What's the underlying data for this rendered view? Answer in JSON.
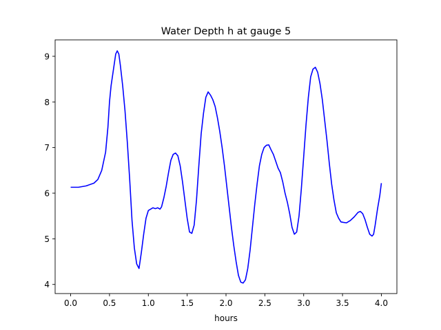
{
  "chart_data": {
    "type": "line",
    "title": "Water Depth h at gauge 5",
    "xlabel": "hours",
    "ylabel": "",
    "xlim": [
      -0.2,
      4.2
    ],
    "ylim": [
      3.8,
      9.36
    ],
    "xticks": [
      "0.0",
      "0.5",
      "1.0",
      "1.5",
      "2.0",
      "2.5",
      "3.0",
      "3.5",
      "4.0"
    ],
    "yticks": [
      "4",
      "5",
      "6",
      "7",
      "8",
      "9"
    ],
    "grid": false,
    "legend": "none",
    "series": [
      {
        "color": "#0000ff",
        "x": [
          0.0,
          0.1,
          0.2,
          0.3,
          0.35,
          0.4,
          0.45,
          0.48,
          0.5,
          0.52,
          0.55,
          0.58,
          0.6,
          0.62,
          0.64,
          0.67,
          0.7,
          0.73,
          0.76,
          0.79,
          0.82,
          0.85,
          0.88,
          0.91,
          0.94,
          0.97,
          1.0,
          1.03,
          1.06,
          1.09,
          1.12,
          1.15,
          1.17,
          1.2,
          1.23,
          1.26,
          1.29,
          1.32,
          1.35,
          1.38,
          1.41,
          1.44,
          1.47,
          1.5,
          1.53,
          1.56,
          1.59,
          1.62,
          1.65,
          1.68,
          1.71,
          1.74,
          1.77,
          1.8,
          1.83,
          1.86,
          1.89,
          1.92,
          1.95,
          1.98,
          2.01,
          2.04,
          2.07,
          2.1,
          2.13,
          2.16,
          2.19,
          2.22,
          2.25,
          2.28,
          2.31,
          2.34,
          2.37,
          2.4,
          2.43,
          2.46,
          2.49,
          2.52,
          2.55,
          2.58,
          2.61,
          2.64,
          2.67,
          2.7,
          2.73,
          2.76,
          2.79,
          2.82,
          2.85,
          2.88,
          2.91,
          2.94,
          2.97,
          3.0,
          3.03,
          3.06,
          3.09,
          3.12,
          3.15,
          3.18,
          3.21,
          3.24,
          3.27,
          3.3,
          3.33,
          3.36,
          3.39,
          3.42,
          3.45,
          3.48,
          3.51,
          3.55,
          3.6,
          3.65,
          3.7,
          3.73,
          3.76,
          3.79,
          3.82,
          3.85,
          3.88,
          3.9,
          3.92,
          3.95,
          3.98,
          4.0
        ],
        "y": [
          6.13,
          6.13,
          6.16,
          6.22,
          6.3,
          6.5,
          6.9,
          7.45,
          8.0,
          8.35,
          8.7,
          9.05,
          9.12,
          9.05,
          8.8,
          8.35,
          7.8,
          7.1,
          6.3,
          5.4,
          4.8,
          4.45,
          4.35,
          4.7,
          5.1,
          5.45,
          5.62,
          5.65,
          5.68,
          5.66,
          5.68,
          5.65,
          5.7,
          5.9,
          6.15,
          6.45,
          6.72,
          6.85,
          6.88,
          6.82,
          6.6,
          6.25,
          5.85,
          5.45,
          5.15,
          5.12,
          5.3,
          5.85,
          6.6,
          7.3,
          7.75,
          8.1,
          8.22,
          8.15,
          8.05,
          7.9,
          7.65,
          7.35,
          7.0,
          6.6,
          6.15,
          5.7,
          5.25,
          4.85,
          4.5,
          4.2,
          4.05,
          4.03,
          4.1,
          4.35,
          4.75,
          5.25,
          5.75,
          6.2,
          6.6,
          6.85,
          7.0,
          7.05,
          7.06,
          6.95,
          6.85,
          6.7,
          6.55,
          6.45,
          6.25,
          6.0,
          5.8,
          5.55,
          5.25,
          5.1,
          5.15,
          5.5,
          6.1,
          6.8,
          7.5,
          8.1,
          8.55,
          8.72,
          8.76,
          8.65,
          8.4,
          8.05,
          7.6,
          7.15,
          6.65,
          6.2,
          5.85,
          5.57,
          5.45,
          5.37,
          5.36,
          5.35,
          5.4,
          5.48,
          5.58,
          5.6,
          5.55,
          5.42,
          5.25,
          5.1,
          5.06,
          5.1,
          5.3,
          5.65,
          5.95,
          6.22
        ]
      }
    ]
  }
}
